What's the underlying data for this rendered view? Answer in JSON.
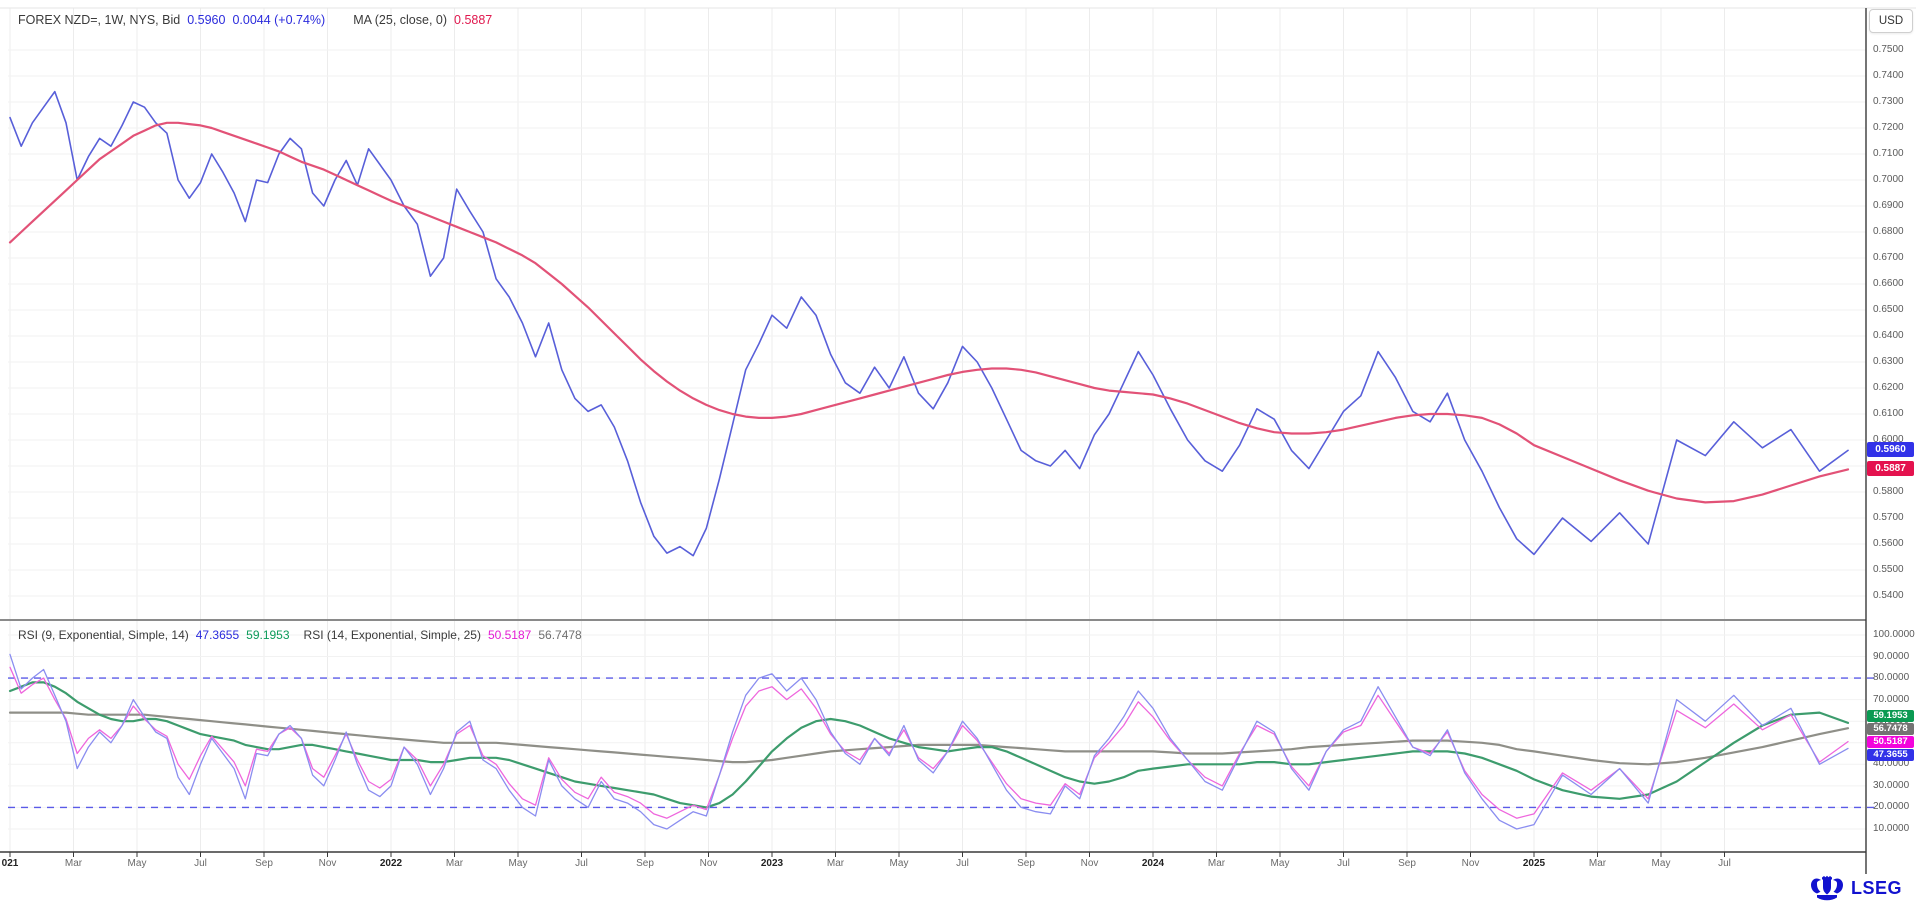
{
  "header": {
    "instrument": "FOREX NZD=, 1W, NYS, Bid",
    "bid_value": "0.5960",
    "change": "0.0044 (+0.74%)",
    "ma_label": "MA (25, close, 0)",
    "ma_value": "0.5887"
  },
  "rsi_header": {
    "rsi1_label": "RSI (9, Exponential, Simple, 14)",
    "rsi1_value": "47.3655",
    "rsi1_avg_value": "59.1953",
    "rsi2_label": "RSI (14, Exponential, Simple, 25)",
    "rsi2_value": "50.5187",
    "rsi2_avg_value": "56.7478"
  },
  "axes": {
    "currency_label": "USD",
    "price_ticks": [
      "0.7500",
      "0.7400",
      "0.7300",
      "0.7200",
      "0.7100",
      "0.7000",
      "0.6900",
      "0.6800",
      "0.6700",
      "0.6600",
      "0.6500",
      "0.6400",
      "0.6300",
      "0.6200",
      "0.6100",
      "0.6000",
      "0.5900",
      "0.5800",
      "0.5700",
      "0.5600",
      "0.5500",
      "0.5400"
    ],
    "rsi_ticks": [
      "100.0000",
      "90.0000",
      "80.0000",
      "70.0000",
      "60.0000",
      "50.0000",
      "40.0000",
      "30.0000",
      "20.0000",
      "10.0000"
    ],
    "x_labels": [
      "021",
      "Mar",
      "May",
      "Jul",
      "Sep",
      "Nov",
      "2022",
      "Mar",
      "May",
      "Jul",
      "Sep",
      "Nov",
      "2023",
      "Mar",
      "May",
      "Jul",
      "Sep",
      "Nov",
      "2024",
      "Mar",
      "May",
      "Jul",
      "Sep",
      "Nov",
      "2025",
      "Mar",
      "May",
      "Jul"
    ],
    "year_labels": [
      "021",
      "2022",
      "2023",
      "2024",
      "2025"
    ]
  },
  "badges": {
    "price": [
      {
        "text": "0.5960",
        "value": 0.596,
        "color": "#3232e8"
      },
      {
        "text": "0.5887",
        "value": 0.5887,
        "color": "#e4124e"
      }
    ],
    "rsi": [
      {
        "text": "59.1953",
        "color": "#0a9a52"
      },
      {
        "text": "56.7478",
        "color": "#737373"
      },
      {
        "text": "50.5187",
        "color": "#f304dc"
      },
      {
        "text": "47.3655",
        "color": "#3232e8"
      }
    ]
  },
  "branding": {
    "logo_text": "LSEG"
  },
  "colors": {
    "bid_line": "#585fd9",
    "ma_line": "#e25277",
    "rsi9_line": "#8a8df0",
    "rsi9_avg_line": "#3d9c6d",
    "rsi14_line": "#ee66dd",
    "rsi14_avg_line": "#8f8f88",
    "band_dashed": "#5a5ae8",
    "grid_v": "#ececec",
    "grid_h": "#f2f2f2",
    "axis_line": "#3a3a3a",
    "separator": "#8a8a8a"
  },
  "chart_data": [
    {
      "type": "line",
      "panel": "price",
      "title": "FOREX NZD=, 1W, NYS, Bid",
      "ylabel": "USD",
      "ylim": [
        0.54,
        0.75
      ],
      "x_years": [
        2021,
        2022,
        2023,
        2024,
        2025
      ],
      "points_per_year": [
        34,
        29,
        26,
        22,
        12
      ],
      "grid": true,
      "series": [
        {
          "name": "Bid",
          "color": "#585fd9",
          "width": 1.6,
          "values": [
            0.724,
            0.713,
            0.722,
            0.728,
            0.734,
            0.722,
            0.7,
            0.709,
            0.716,
            0.713,
            0.721,
            0.73,
            0.728,
            0.722,
            0.718,
            0.7,
            0.693,
            0.699,
            0.71,
            0.703,
            0.695,
            0.684,
            0.7,
            0.699,
            0.71,
            0.716,
            0.712,
            0.695,
            0.69,
            0.7,
            0.7075,
            0.698,
            0.712,
            0.706,
            0.7,
            0.69,
            0.683,
            0.663,
            0.67,
            0.6965,
            0.688,
            0.68,
            0.662,
            0.655,
            0.645,
            0.632,
            0.645,
            0.627,
            0.616,
            0.611,
            0.6135,
            0.605,
            0.592,
            0.576,
            0.563,
            0.5565,
            0.559,
            0.5555,
            0.566,
            0.585,
            0.606,
            0.627,
            0.637,
            0.648,
            0.643,
            0.655,
            0.648,
            0.633,
            0.622,
            0.618,
            0.628,
            0.62,
            0.632,
            0.618,
            0.612,
            0.622,
            0.636,
            0.63,
            0.62,
            0.608,
            0.596,
            0.592,
            0.59,
            0.596,
            0.589,
            0.602,
            0.61,
            0.622,
            0.634,
            0.625,
            0.612,
            0.6,
            0.592,
            0.588,
            0.598,
            0.612,
            0.608,
            0.596,
            0.589,
            0.6,
            0.611,
            0.617,
            0.634,
            0.624,
            0.611,
            0.607,
            0.618,
            0.6,
            0.588,
            0.574,
            0.562,
            0.556,
            0.57,
            0.561,
            0.572,
            0.56,
            0.6,
            0.594,
            0.607,
            0.597,
            0.604,
            0.588,
            0.596
          ]
        },
        {
          "name": "MA (25, close, 0)",
          "color": "#e25277",
          "width": 2.2,
          "values": [
            0.676,
            0.68,
            0.684,
            0.688,
            0.692,
            0.696,
            0.7,
            0.704,
            0.708,
            0.711,
            0.714,
            0.717,
            0.719,
            0.721,
            0.722,
            0.722,
            0.7215,
            0.721,
            0.72,
            0.7185,
            0.717,
            0.7155,
            0.714,
            0.7125,
            0.711,
            0.709,
            0.707,
            0.7055,
            0.704,
            0.702,
            0.7,
            0.698,
            0.696,
            0.694,
            0.692,
            0.69,
            0.688,
            0.686,
            0.684,
            0.682,
            0.68,
            0.678,
            0.676,
            0.6735,
            0.671,
            0.668,
            0.664,
            0.66,
            0.6555,
            0.651,
            0.646,
            0.641,
            0.636,
            0.631,
            0.6265,
            0.6225,
            0.619,
            0.616,
            0.6135,
            0.6115,
            0.61,
            0.609,
            0.6085,
            0.6085,
            0.609,
            0.61,
            0.6115,
            0.613,
            0.6145,
            0.616,
            0.6175,
            0.619,
            0.6205,
            0.622,
            0.6235,
            0.625,
            0.6262,
            0.627,
            0.6275,
            0.6275,
            0.627,
            0.626,
            0.6245,
            0.623,
            0.6215,
            0.62,
            0.619,
            0.6185,
            0.618,
            0.6175,
            0.616,
            0.614,
            0.6115,
            0.609,
            0.6065,
            0.6045,
            0.603,
            0.6025,
            0.6025,
            0.603,
            0.604,
            0.6055,
            0.607,
            0.6085,
            0.6095,
            0.61,
            0.61,
            0.6095,
            0.6085,
            0.606,
            0.6025,
            0.598,
            0.5935,
            0.589,
            0.5845,
            0.5805,
            0.5775,
            0.576,
            0.5765,
            0.579,
            0.5825,
            0.586,
            0.5887
          ]
        }
      ]
    },
    {
      "type": "line",
      "panel": "rsi",
      "title": "RSI",
      "ylim": [
        0,
        100
      ],
      "overbought": 80,
      "oversold": 20,
      "points_per_year": [
        34,
        29,
        26,
        22,
        12
      ],
      "series": [
        {
          "name": "RSI (14) avg (Simple, 25)",
          "color": "#8f8f88",
          "width": 2.2,
          "values": [
            64,
            64,
            64,
            64,
            64,
            64,
            63.5,
            63,
            63,
            63,
            63,
            63,
            63,
            62.5,
            62,
            61.5,
            61,
            60.5,
            60,
            59.5,
            59,
            58.5,
            58,
            57.5,
            57,
            56.5,
            56,
            55.5,
            55,
            54.5,
            54,
            53.5,
            53,
            52.5,
            52,
            51.5,
            51,
            50.5,
            50,
            50,
            50,
            50,
            50,
            49.5,
            49,
            48.5,
            48,
            47.5,
            47,
            46.5,
            46,
            45.5,
            45,
            44.5,
            44,
            43.5,
            43,
            42.5,
            42,
            41.5,
            41,
            41,
            41.5,
            42,
            43,
            44,
            45,
            46,
            46.5,
            47,
            47.5,
            48,
            48.5,
            49,
            49,
            49,
            49,
            49,
            48.5,
            48,
            47.5,
            47,
            46.5,
            46,
            46,
            46,
            46,
            46,
            46,
            46,
            45.5,
            45,
            45,
            45,
            45.5,
            46,
            46.5,
            47,
            48,
            48.5,
            49,
            49.5,
            50,
            50.5,
            51,
            51,
            51,
            50.5,
            50,
            49,
            47,
            46,
            44,
            42,
            40.5,
            40,
            41,
            43,
            45.5,
            48,
            51,
            54,
            56.7478
          ]
        },
        {
          "name": "RSI (9) avg (Simple, 14)",
          "color": "#3d9c6d",
          "width": 2.2,
          "values": [
            74,
            76,
            78,
            78,
            76,
            73,
            69,
            66,
            63,
            61,
            60,
            60,
            61,
            61,
            60,
            58,
            56,
            54,
            53,
            52,
            51,
            49,
            48,
            47,
            47,
            48,
            49,
            49,
            48,
            47,
            46,
            45,
            44,
            43,
            42,
            42,
            42,
            41,
            41,
            42,
            43,
            43,
            43,
            42,
            40,
            38,
            36,
            34,
            32,
            31,
            30,
            29,
            28,
            27,
            26,
            24,
            22,
            21,
            20,
            22,
            26,
            32,
            39,
            46,
            52,
            57,
            60,
            61,
            60,
            58,
            55,
            52,
            50,
            48,
            47,
            46,
            47,
            48,
            48,
            46,
            43,
            40,
            37,
            34,
            32,
            31,
            32,
            34,
            37,
            38,
            39,
            40,
            40,
            40,
            40,
            41,
            41,
            40,
            40,
            41,
            42,
            43,
            44,
            45,
            46,
            46,
            46,
            45,
            43,
            40,
            37,
            33,
            28,
            25,
            24,
            26,
            32,
            41,
            50,
            58,
            63,
            64,
            59.1953
          ]
        },
        {
          "name": "RSI (14)",
          "color": "#ee66dd",
          "width": 1.3,
          "values": [
            85,
            73,
            77,
            80,
            70,
            61,
            45,
            52,
            56,
            52,
            58,
            67,
            61,
            56,
            53,
            40,
            33,
            44,
            53,
            47,
            41,
            30,
            47,
            46,
            54,
            57,
            52,
            38,
            34,
            44,
            54,
            42,
            32,
            29,
            33,
            48,
            42,
            30,
            40,
            54,
            58,
            44,
            40,
            31,
            24,
            21,
            43,
            33,
            27,
            24,
            34,
            27,
            25,
            22,
            17,
            15,
            18,
            21,
            19,
            35,
            52,
            67,
            74,
            76,
            70,
            75,
            66,
            54,
            46,
            42,
            52,
            45,
            56,
            43,
            38,
            46,
            58,
            51,
            41,
            31,
            24,
            22,
            21,
            31,
            26,
            43,
            50,
            58,
            69,
            62,
            51,
            42,
            34,
            30,
            45,
            58,
            54,
            39,
            30,
            46,
            55,
            58,
            72,
            60,
            48,
            45,
            55,
            37,
            26,
            19,
            15,
            17,
            36,
            28,
            38,
            24,
            65,
            57,
            68,
            56,
            63,
            41,
            50.5187
          ]
        },
        {
          "name": "RSI (9)",
          "color": "#8a8df0",
          "width": 1.3,
          "values": [
            91,
            75,
            80,
            84,
            72,
            60,
            38,
            48,
            55,
            50,
            58,
            70,
            62,
            55,
            52,
            34,
            26,
            40,
            52,
            45,
            38,
            24,
            45,
            44,
            54,
            58,
            52,
            35,
            30,
            42,
            55,
            40,
            28,
            25,
            30,
            48,
            40,
            26,
            38,
            55,
            60,
            42,
            38,
            28,
            20,
            16,
            42,
            30,
            24,
            20,
            32,
            24,
            22,
            18,
            12,
            10,
            14,
            18,
            16,
            35,
            55,
            72,
            80,
            82,
            74,
            80,
            70,
            55,
            45,
            40,
            52,
            44,
            58,
            42,
            36,
            46,
            60,
            52,
            40,
            28,
            20,
            18,
            17,
            30,
            24,
            44,
            52,
            62,
            74,
            66,
            52,
            42,
            32,
            28,
            44,
            60,
            55,
            38,
            28,
            46,
            56,
            60,
            76,
            62,
            48,
            44,
            56,
            36,
            24,
            14,
            10,
            12,
            35,
            26,
            38,
            22,
            70,
            60,
            72,
            58,
            66,
            40,
            47.3655
          ]
        }
      ]
    }
  ]
}
